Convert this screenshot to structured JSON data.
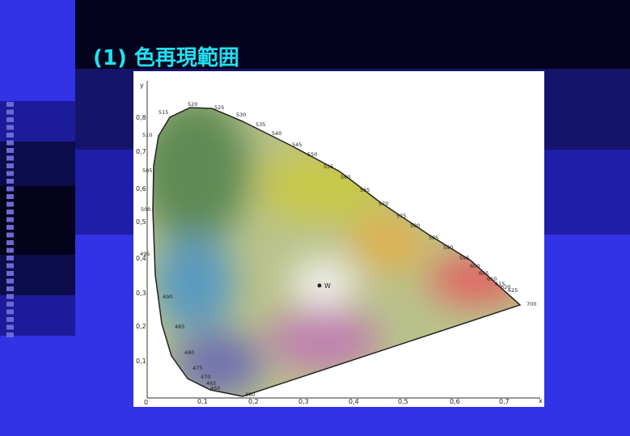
{
  "slide": {
    "title": "(1) 色再現範囲",
    "diagram": {
      "axis_x": "x",
      "axis_y": "y",
      "origin": "0",
      "x_ticks": [
        "0,1",
        "0,2",
        "0,3",
        "0,4",
        "0,5",
        "0,6",
        "0,7"
      ],
      "y_ticks": [
        "0,1",
        "0,2",
        "0,3",
        "0,4",
        "0,5",
        "0,6",
        "0,7",
        "0,8"
      ],
      "white_point": "W",
      "wavelengths": [
        "515",
        "520",
        "525",
        "530",
        "535",
        "540",
        "545",
        "550",
        "555",
        "560",
        "565",
        "570",
        "575",
        "580",
        "585",
        "590",
        "595",
        "600",
        "605",
        "610",
        "615",
        "620",
        "625",
        "700",
        "510",
        "505",
        "500",
        "495",
        "490",
        "485",
        "480",
        "475",
        "470",
        "465",
        "460",
        "380"
      ]
    }
  }
}
